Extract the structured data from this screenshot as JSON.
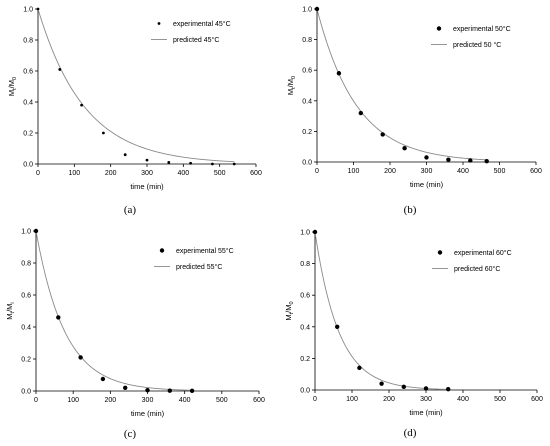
{
  "chart_data": [
    {
      "type": "scatter",
      "panel_label": "(a)",
      "xlabel": "time (min)",
      "ylabel_main": "M",
      "ylabel_sub1": "t",
      "ylabel_mid": "/M",
      "ylabel_sub2": "0",
      "xlim": [
        0,
        600
      ],
      "ylim": [
        0.0,
        1.0
      ],
      "x_ticks": [
        "0",
        "100",
        "200",
        "300",
        "400",
        "500",
        "600"
      ],
      "y_ticks": [
        "0.0",
        "0.2",
        "0.4",
        "0.6",
        "0.8",
        "1.0"
      ],
      "legend_placement": "top-right",
      "series": [
        {
          "name": "experimental 45°C",
          "kind": "points",
          "x": [
            0,
            60,
            120,
            180,
            240,
            300,
            360,
            420,
            480,
            540
          ],
          "y": [
            1.0,
            0.61,
            0.38,
            0.2,
            0.06,
            0.025,
            0.01,
            0.005,
            0.0,
            0.0
          ]
        },
        {
          "name": "predicted 45°C",
          "kind": "line",
          "k": 0.0078
        }
      ]
    },
    {
      "type": "scatter",
      "panel_label": "(b)",
      "xlabel": "time (min)",
      "ylabel_main": "M",
      "ylabel_sub1": "t",
      "ylabel_mid": "/M",
      "ylabel_sub2": "0",
      "xlim": [
        0,
        600
      ],
      "ylim": [
        0.0,
        1.0
      ],
      "x_ticks": [
        "0",
        "100",
        "200",
        "300",
        "400",
        "500",
        "600"
      ],
      "y_ticks": [
        "0.0",
        "0.2",
        "0.4",
        "0.6",
        "0.8",
        "1.0"
      ],
      "legend_placement": "top-right",
      "series": [
        {
          "name": "experimental 50°C",
          "kind": "points",
          "x": [
            0,
            60,
            120,
            180,
            240,
            300,
            360,
            420,
            465
          ],
          "y": [
            1.0,
            0.58,
            0.32,
            0.18,
            0.09,
            0.03,
            0.015,
            0.01,
            0.005
          ]
        },
        {
          "name": "predicted 50 °C",
          "kind": "line",
          "k": 0.0092
        }
      ]
    },
    {
      "type": "scatter",
      "panel_label": "(c)",
      "xlabel": "time (min)",
      "ylabel_main": "M",
      "ylabel_sub1": "t",
      "ylabel_mid": "/M",
      "ylabel_sub2": "i",
      "xlim": [
        0,
        600
      ],
      "ylim": [
        0.0,
        1.0
      ],
      "x_ticks": [
        "0",
        "100",
        "200",
        "300",
        "400",
        "500",
        "600"
      ],
      "y_ticks": [
        "0.0",
        "0.2",
        "0.4",
        "0.6",
        "0.8",
        "1.0"
      ],
      "legend_placement": "top-right",
      "series": [
        {
          "name": "experimental 55°C",
          "kind": "points",
          "x": [
            0,
            60,
            120,
            180,
            240,
            300,
            360,
            420
          ],
          "y": [
            1.0,
            0.46,
            0.21,
            0.075,
            0.02,
            0.005,
            0.002,
            0.001
          ]
        },
        {
          "name": "predicted 55°C",
          "kind": "line",
          "k": 0.0128
        }
      ]
    },
    {
      "type": "scatter",
      "panel_label": "(d)",
      "xlabel": "time (min)",
      "ylabel_main": "M",
      "ylabel_sub1": "t",
      "ylabel_mid": "/M",
      "ylabel_sub2": "0",
      "xlim": [
        0,
        600
      ],
      "ylim": [
        0.0,
        1.0
      ],
      "x_ticks": [
        "0",
        "100",
        "200",
        "300",
        "400",
        "500",
        "600"
      ],
      "y_ticks": [
        "0.0",
        "0.2",
        "0.4",
        "0.6",
        "0.8",
        "1.0"
      ],
      "legend_placement": "top-right",
      "series": [
        {
          "name": "experimental 60°C",
          "kind": "points",
          "x": [
            0,
            60,
            120,
            180,
            240,
            300,
            360
          ],
          "y": [
            1.0,
            0.4,
            0.14,
            0.04,
            0.02,
            0.01,
            0.005
          ]
        },
        {
          "name": "predicted 60°C",
          "kind": "line",
          "k": 0.0155
        }
      ]
    }
  ]
}
